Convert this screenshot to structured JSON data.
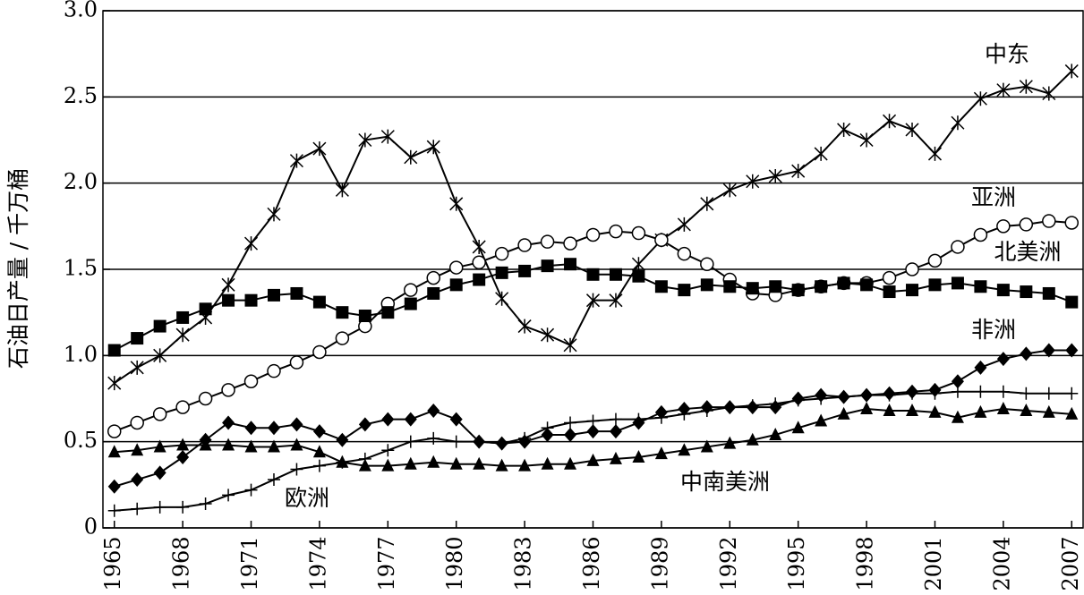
{
  "chart_data": {
    "type": "line",
    "y_label": "石油日产量 / 千万桶",
    "x": [
      1965,
      1966,
      1967,
      1968,
      1969,
      1970,
      1971,
      1972,
      1973,
      1974,
      1975,
      1976,
      1977,
      1978,
      1979,
      1980,
      1981,
      1982,
      1983,
      1984,
      1985,
      1986,
      1987,
      1988,
      1989,
      1990,
      1991,
      1992,
      1993,
      1994,
      1995,
      1996,
      1997,
      1998,
      1999,
      2000,
      2001,
      2002,
      2003,
      2004,
      2005,
      2006,
      2007
    ],
    "xlim": [
      1964.5,
      2007.5
    ],
    "xticks": [
      1965,
      1968,
      1971,
      1974,
      1977,
      1980,
      1983,
      1986,
      1989,
      1992,
      1995,
      1998,
      2001,
      2004,
      2007
    ],
    "ylim": [
      0,
      3
    ],
    "yticks": [
      0,
      0.5,
      {
        "value": 1,
        "label": "1.0"
      },
      1.5,
      {
        "value": 2,
        "label": "2.0"
      },
      2.5,
      {
        "value": 3,
        "label": "3.0"
      }
    ],
    "grid": true,
    "series": [
      {
        "name": "中东",
        "color": "#000000",
        "marker": "asterisk",
        "values": [
          0.84,
          0.93,
          1.0,
          1.12,
          1.22,
          1.41,
          1.65,
          1.82,
          2.13,
          2.2,
          1.96,
          2.25,
          2.27,
          2.15,
          2.21,
          1.88,
          1.63,
          1.33,
          1.17,
          1.12,
          1.06,
          1.32,
          1.32,
          1.53,
          1.67,
          1.76,
          1.88,
          1.96,
          2.01,
          2.04,
          2.07,
          2.17,
          2.31,
          2.25,
          2.36,
          2.31,
          2.17,
          2.35,
          2.49,
          2.54,
          2.56,
          2.52,
          2.65
        ]
      },
      {
        "name": "亚洲",
        "color": "#000000",
        "marker": "circle",
        "values": [
          0.56,
          0.61,
          0.66,
          0.7,
          0.75,
          0.8,
          0.85,
          0.91,
          0.96,
          1.02,
          1.1,
          1.17,
          1.3,
          1.38,
          1.45,
          1.51,
          1.54,
          1.59,
          1.64,
          1.66,
          1.65,
          1.7,
          1.72,
          1.71,
          1.67,
          1.59,
          1.53,
          1.44,
          1.36,
          1.35,
          1.38,
          1.4,
          1.42,
          1.42,
          1.45,
          1.5,
          1.55,
          1.63,
          1.7,
          1.75,
          1.76,
          1.78,
          1.77
        ]
      },
      {
        "name": "北美洲",
        "color": "#000000",
        "marker": "square",
        "values": [
          1.03,
          1.1,
          1.17,
          1.22,
          1.27,
          1.32,
          1.32,
          1.35,
          1.36,
          1.31,
          1.25,
          1.23,
          1.25,
          1.3,
          1.36,
          1.41,
          1.44,
          1.48,
          1.49,
          1.52,
          1.53,
          1.47,
          1.47,
          1.46,
          1.4,
          1.38,
          1.41,
          1.4,
          1.39,
          1.4,
          1.38,
          1.4,
          1.42,
          1.41,
          1.37,
          1.38,
          1.41,
          1.42,
          1.4,
          1.38,
          1.37,
          1.36,
          1.31
        ]
      },
      {
        "name": "非洲",
        "color": "#000000",
        "marker": "diamond",
        "values": [
          0.24,
          0.28,
          0.32,
          0.41,
          0.51,
          0.61,
          0.58,
          0.58,
          0.6,
          0.56,
          0.51,
          0.6,
          0.63,
          0.63,
          0.68,
          0.63,
          0.5,
          0.49,
          0.5,
          0.54,
          0.54,
          0.56,
          0.56,
          0.61,
          0.67,
          0.69,
          0.7,
          0.7,
          0.7,
          0.7,
          0.75,
          0.77,
          0.76,
          0.77,
          0.78,
          0.79,
          0.8,
          0.85,
          0.93,
          0.98,
          1.01,
          1.03,
          1.03
        ]
      },
      {
        "name": "中南美洲",
        "color": "#000000",
        "marker": "triangle",
        "values": [
          0.44,
          0.45,
          0.47,
          0.48,
          0.48,
          0.48,
          0.47,
          0.47,
          0.48,
          0.44,
          0.38,
          0.36,
          0.36,
          0.37,
          0.38,
          0.37,
          0.37,
          0.36,
          0.36,
          0.37,
          0.37,
          0.39,
          0.4,
          0.41,
          0.43,
          0.45,
          0.47,
          0.49,
          0.51,
          0.54,
          0.58,
          0.62,
          0.66,
          0.69,
          0.68,
          0.68,
          0.67,
          0.64,
          0.67,
          0.69,
          0.68,
          0.67,
          0.66
        ]
      },
      {
        "name": "欧洲",
        "color": "#000000",
        "marker": "plus",
        "values": [
          0.1,
          0.11,
          0.12,
          0.12,
          0.14,
          0.19,
          0.22,
          0.28,
          0.34,
          0.36,
          0.38,
          0.4,
          0.45,
          0.5,
          0.52,
          0.5,
          0.5,
          0.49,
          0.52,
          0.58,
          0.61,
          0.62,
          0.63,
          0.63,
          0.64,
          0.66,
          0.68,
          0.7,
          0.71,
          0.72,
          0.74,
          0.75,
          0.76,
          0.77,
          0.77,
          0.78,
          0.78,
          0.79,
          0.79,
          0.79,
          0.78,
          0.78,
          0.78
        ]
      }
    ]
  }
}
